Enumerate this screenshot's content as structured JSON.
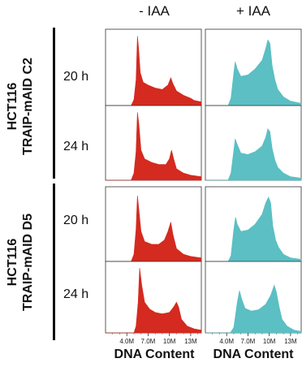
{
  "chart_data": {
    "type": "area",
    "column_headers": [
      "- IAA",
      "+ IAA"
    ],
    "row_groups": [
      {
        "label_line1": "HCT116",
        "label_line2": "TRAIP-mAID C2",
        "timepoints": [
          "20 h",
          "24 h"
        ]
      },
      {
        "label_line1": "HCT116",
        "label_line2": "TRAIP-mAID D5",
        "timepoints": [
          "20 h",
          "24 h"
        ]
      }
    ],
    "x_ticks": [
      "4.0M",
      "7.0M",
      "10M",
      "13M"
    ],
    "x_tick_values": [
      4.0,
      7.0,
      10.0,
      13.0
    ],
    "xlim": [
      1.0,
      14.5
    ],
    "xlabel": "DNA Content",
    "colors": {
      "minus_iaa": "#d42a1f",
      "plus_iaa": "#5bbfc3"
    },
    "panels": [
      {
        "condition": "- IAA",
        "clone": "C2",
        "time": "20 h",
        "profile": [
          [
            1,
            0
          ],
          [
            4.6,
            0
          ],
          [
            5.0,
            0.08
          ],
          [
            5.3,
            0.35
          ],
          [
            5.5,
            0.95
          ],
          [
            5.65,
            0.8
          ],
          [
            5.9,
            0.45
          ],
          [
            6.3,
            0.32
          ],
          [
            7,
            0.28
          ],
          [
            8,
            0.24
          ],
          [
            9,
            0.22
          ],
          [
            9.8,
            0.28
          ],
          [
            10.2,
            0.38
          ],
          [
            10.5,
            0.3
          ],
          [
            11,
            0.2
          ],
          [
            12,
            0.14
          ],
          [
            13,
            0.1
          ],
          [
            13.5,
            0.07
          ],
          [
            14.5,
            0.05
          ]
        ]
      },
      {
        "condition": "+ IAA",
        "clone": "C2",
        "time": "20 h",
        "profile": [
          [
            1,
            0
          ],
          [
            4.2,
            0
          ],
          [
            4.6,
            0.1
          ],
          [
            5.0,
            0.45
          ],
          [
            5.2,
            0.6
          ],
          [
            5.5,
            0.5
          ],
          [
            6,
            0.4
          ],
          [
            7,
            0.42
          ],
          [
            8,
            0.5
          ],
          [
            9,
            0.62
          ],
          [
            9.5,
            0.78
          ],
          [
            9.8,
            0.9
          ],
          [
            10.1,
            0.85
          ],
          [
            10.4,
            0.55
          ],
          [
            10.8,
            0.35
          ],
          [
            11.2,
            0.22
          ],
          [
            12,
            0.12
          ],
          [
            13,
            0.06
          ],
          [
            14.5,
            0.03
          ]
        ]
      },
      {
        "condition": "- IAA",
        "clone": "C2",
        "time": "24 h",
        "profile": [
          [
            1,
            0
          ],
          [
            4.6,
            0
          ],
          [
            5.0,
            0.1
          ],
          [
            5.3,
            0.4
          ],
          [
            5.5,
            0.95
          ],
          [
            5.7,
            0.78
          ],
          [
            6,
            0.42
          ],
          [
            6.5,
            0.3
          ],
          [
            7.5,
            0.25
          ],
          [
            8.5,
            0.22
          ],
          [
            9.5,
            0.22
          ],
          [
            10,
            0.3
          ],
          [
            10.3,
            0.42
          ],
          [
            10.6,
            0.3
          ],
          [
            11,
            0.16
          ],
          [
            12,
            0.1
          ],
          [
            13,
            0.07
          ],
          [
            14.5,
            0.05
          ]
        ]
      },
      {
        "condition": "+ IAA",
        "clone": "C2",
        "time": "24 h",
        "profile": [
          [
            1,
            0
          ],
          [
            4.2,
            0
          ],
          [
            4.6,
            0.1
          ],
          [
            5.0,
            0.42
          ],
          [
            5.2,
            0.58
          ],
          [
            5.5,
            0.5
          ],
          [
            6,
            0.38
          ],
          [
            7,
            0.36
          ],
          [
            8,
            0.4
          ],
          [
            9,
            0.48
          ],
          [
            9.5,
            0.6
          ],
          [
            9.8,
            0.72
          ],
          [
            10.1,
            0.68
          ],
          [
            10.4,
            0.45
          ],
          [
            10.8,
            0.28
          ],
          [
            11.2,
            0.18
          ],
          [
            12,
            0.1
          ],
          [
            13,
            0.05
          ],
          [
            14.5,
            0.03
          ]
        ]
      },
      {
        "condition": "- IAA",
        "clone": "D5",
        "time": "20 h",
        "profile": [
          [
            1,
            0
          ],
          [
            4.6,
            0
          ],
          [
            5.0,
            0.1
          ],
          [
            5.3,
            0.45
          ],
          [
            5.5,
            0.92
          ],
          [
            5.7,
            0.72
          ],
          [
            6,
            0.42
          ],
          [
            6.5,
            0.28
          ],
          [
            7.5,
            0.24
          ],
          [
            8.5,
            0.24
          ],
          [
            9.3,
            0.3
          ],
          [
            9.8,
            0.42
          ],
          [
            10.2,
            0.55
          ],
          [
            10.5,
            0.38
          ],
          [
            11,
            0.18
          ],
          [
            12,
            0.1
          ],
          [
            13,
            0.07
          ],
          [
            14.5,
            0.05
          ]
        ]
      },
      {
        "condition": "+ IAA",
        "clone": "D5",
        "time": "20 h",
        "profile": [
          [
            1,
            0
          ],
          [
            4.2,
            0
          ],
          [
            4.6,
            0.08
          ],
          [
            5.0,
            0.45
          ],
          [
            5.25,
            0.62
          ],
          [
            5.5,
            0.52
          ],
          [
            6,
            0.42
          ],
          [
            7,
            0.44
          ],
          [
            8,
            0.52
          ],
          [
            9,
            0.66
          ],
          [
            9.5,
            0.82
          ],
          [
            9.9,
            0.9
          ],
          [
            10.2,
            0.82
          ],
          [
            10.5,
            0.5
          ],
          [
            10.9,
            0.3
          ],
          [
            11.3,
            0.2
          ],
          [
            12,
            0.1
          ],
          [
            13,
            0.05
          ],
          [
            14.5,
            0.03
          ]
        ]
      },
      {
        "condition": "- IAA",
        "clone": "D5",
        "time": "24 h",
        "profile": [
          [
            1,
            0
          ],
          [
            5.0,
            0
          ],
          [
            5.3,
            0.1
          ],
          [
            5.6,
            0.45
          ],
          [
            5.8,
            0.95
          ],
          [
            6.1,
            0.7
          ],
          [
            6.5,
            0.45
          ],
          [
            7.2,
            0.35
          ],
          [
            8,
            0.3
          ],
          [
            9,
            0.28
          ],
          [
            10,
            0.3
          ],
          [
            10.6,
            0.38
          ],
          [
            11,
            0.45
          ],
          [
            11.3,
            0.38
          ],
          [
            11.7,
            0.2
          ],
          [
            12.5,
            0.1
          ],
          [
            13.5,
            0.06
          ],
          [
            14.5,
            0.04
          ]
        ]
      },
      {
        "condition": "+ IAA",
        "clone": "D5",
        "time": "24 h",
        "profile": [
          [
            1,
            0
          ],
          [
            4.5,
            0
          ],
          [
            5.0,
            0.08
          ],
          [
            5.5,
            0.45
          ],
          [
            5.8,
            0.62
          ],
          [
            6.1,
            0.5
          ],
          [
            6.6,
            0.36
          ],
          [
            7.5,
            0.32
          ],
          [
            8.5,
            0.34
          ],
          [
            9.5,
            0.42
          ],
          [
            10.2,
            0.55
          ],
          [
            10.7,
            0.7
          ],
          [
            11,
            0.6
          ],
          [
            11.4,
            0.38
          ],
          [
            11.8,
            0.2
          ],
          [
            12.5,
            0.1
          ],
          [
            13.5,
            0.04
          ],
          [
            14.5,
            0.02
          ]
        ]
      }
    ]
  }
}
